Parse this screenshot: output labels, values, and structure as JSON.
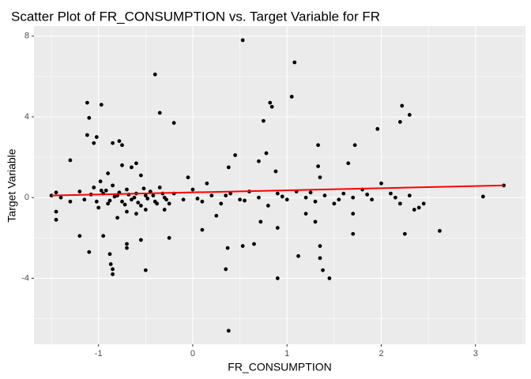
{
  "chart_data": {
    "type": "scatter",
    "title": "Scatter Plot of FR_CONSUMPTION vs. Target Variable for FR",
    "x_label": "FR_CONSUMPTION",
    "y_label": "Target Variable",
    "xlim": [
      -1.685,
      3.53
    ],
    "ylim": [
      -7.27,
      8.5
    ],
    "xticks": [
      -1,
      0,
      1,
      2,
      3
    ],
    "yticks": [
      -4,
      0,
      4,
      8
    ],
    "grid": true,
    "color": "#000000",
    "x": [
      -1.12,
      -0.97,
      -1.1,
      -1.12,
      -1.02,
      -1.05,
      -0.85,
      -0.78,
      -0.75,
      -0.4,
      -0.35,
      -0.2,
      0.53,
      1.08,
      1.05,
      0.82,
      0.84,
      0.75,
      0.45,
      1.33,
      1.72,
      1.96,
      2.22,
      2.2,
      2.3,
      1.65,
      1.33,
      1.35,
      -1.3,
      0.88,
      0.38,
      0.7,
      0.78,
      0.38,
      0.35,
      0.9,
      1.45,
      -0.5,
      -0.85,
      -0.85,
      -0.87,
      -0.88,
      -0.7,
      -0.7,
      -1.1,
      -1.2,
      -0.25,
      0.37,
      0.53,
      0.65,
      1.12,
      1.35,
      1.35,
      1.38,
      1.3,
      1.7,
      2.25,
      2.62,
      -1.45,
      -1.45,
      0.72,
      0.9,
      0.1,
      -0.55,
      -0.95,
      -1.5,
      -1.45,
      -1.4,
      -1.3,
      -1.2,
      -1.15,
      -1.05,
      -1,
      -0.95,
      -0.9,
      -0.85,
      -0.8,
      -0.75,
      -0.7,
      -0.65,
      -0.6,
      -0.55,
      -0.5,
      -0.45,
      -0.4,
      -0.35,
      -0.3,
      -0.25,
      -0.2,
      -0.1,
      0,
      0.1,
      0.2,
      0.3,
      0.4,
      0.5,
      0.6,
      0.7,
      0.8,
      0.9,
      1,
      1.1,
      1.2,
      1.3,
      1.4,
      1.5,
      1.6,
      1.7,
      1.8,
      1.9,
      2,
      2.1,
      2.2,
      2.3,
      2.4,
      2.45,
      3.08,
      3.3,
      -0.9,
      -0.75,
      -0.65,
      -0.6,
      -0.55,
      -0.05,
      0.15,
      -0.8,
      -0.6,
      -0.3,
      0.25,
      1.2,
      1.7,
      2.35,
      -0.98,
      -0.7,
      -0.5,
      -0.92,
      -0.88,
      -0.83,
      -0.78,
      -0.72,
      -0.68,
      -0.62,
      -0.58,
      -0.52,
      -0.48,
      -0.42,
      -0.38,
      -0.32,
      -0.28,
      -1.08,
      -1.02,
      -0.97,
      0.05,
      0.35,
      0.55,
      0.95,
      1.25,
      1.55,
      1.85,
      2.15
    ],
    "values": [
      4.7,
      4.6,
      3.95,
      3.1,
      3.0,
      2.7,
      2.7,
      2.8,
      2.6,
      6.1,
      4.2,
      3.7,
      7.8,
      6.7,
      5.0,
      4.7,
      4.5,
      3.8,
      2.1,
      2.6,
      2.6,
      3.4,
      4.55,
      3.75,
      4.1,
      1.7,
      1.55,
      1.0,
      1.85,
      1.3,
      1.5,
      1.8,
      2.2,
      -6.6,
      -3.55,
      -4.0,
      -4.0,
      -3.6,
      -3.8,
      -3.55,
      -3.3,
      -2.8,
      -2.5,
      -2.3,
      -2.7,
      -1.9,
      -2.0,
      -2.5,
      -2.4,
      -2.3,
      -2.9,
      -2.4,
      -3.0,
      -3.6,
      -1.2,
      -1.8,
      -1.8,
      -1.65,
      -1.1,
      -0.7,
      -1.2,
      -1.5,
      -1.6,
      -2.1,
      -1.9,
      0.1,
      0.25,
      0,
      -0.2,
      0.3,
      -0.1,
      0.5,
      -0.5,
      0.2,
      -0.3,
      0.6,
      0.1,
      -0.2,
      0.4,
      -0.1,
      0.2,
      -0.4,
      0.1,
      0.3,
      -0.2,
      0.5,
      0,
      -0.3,
      0.2,
      -0.1,
      0.4,
      -0.2,
      0.1,
      -0.3,
      0.2,
      -0.1,
      0.3,
      0,
      -0.4,
      0.2,
      -0.1,
      0.3,
      0,
      -0.2,
      0.1,
      -0.3,
      0.2,
      0,
      0.4,
      -0.1,
      0.7,
      0.2,
      -0.3,
      0.1,
      -0.5,
      -0.3,
      0.05,
      0.6,
      1.2,
      1.6,
      1.5,
      1.7,
      1.1,
      1.0,
      0.7,
      -1.0,
      -0.8,
      -0.6,
      -0.9,
      -0.8,
      -0.8,
      -0.6,
      0.8,
      -0.7,
      -0.6,
      0.35,
      -0.15,
      0.05,
      0.25,
      -0.35,
      0.15,
      0.0,
      -0.25,
      0.45,
      -0.05,
      0.1,
      -0.3,
      0.2,
      -0.1,
      0.15,
      -0.2,
      0.35,
      -0.05,
      0.1,
      -0.15,
      0.05,
      0.25,
      -0.1,
      0.15,
      0.0
    ],
    "trend_line": {
      "x": [
        -1.5,
        3.3
      ],
      "values": [
        0.1,
        0.6
      ],
      "color": "#ff0000"
    }
  }
}
